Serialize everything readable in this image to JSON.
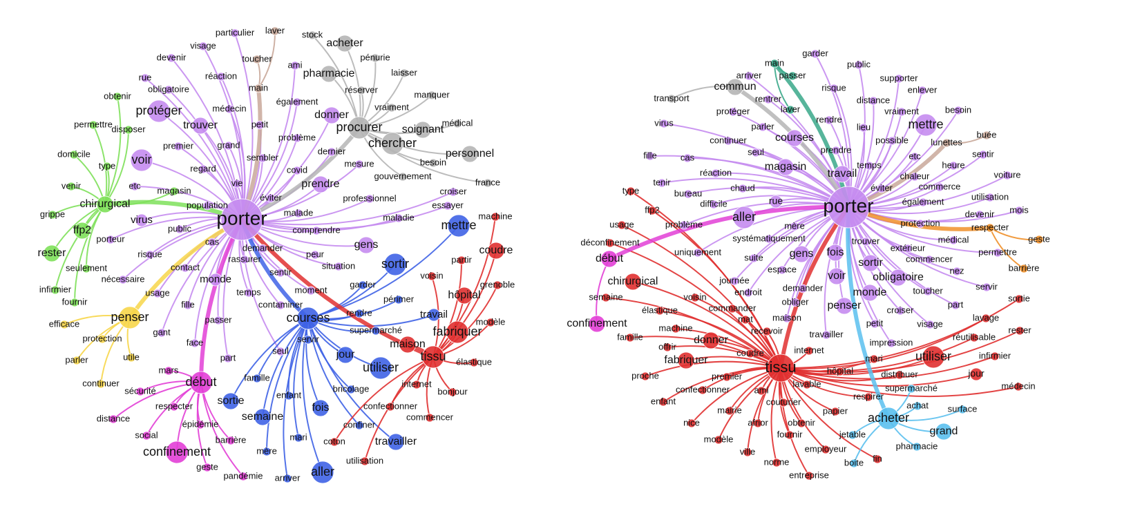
{
  "graphs": [
    {
      "clusters": [
        {
          "color": "#c58cf0",
          "nodes": [
            "porter",
            "particulier",
            "visage",
            "devenir",
            "ami",
            "réaction",
            "rue",
            "obligatoire",
            "médecin",
            "également",
            "protéger",
            "trouver",
            "petit",
            "problème",
            "premier",
            "grand",
            "sembler",
            "dernier",
            "voir",
            "regard",
            "covid",
            "mesure",
            "etc",
            "vie",
            "prendre",
            "éviter",
            "population",
            "malade",
            "virus",
            "public",
            "cas",
            "comprendre",
            "demander",
            "rassurer",
            "porteur",
            "risque",
            "contact",
            "peur",
            "situation",
            "sentir",
            "monde",
            "nécessaire",
            "moment",
            "temps",
            "usage",
            "fille",
            "contaminer",
            "passer",
            "gant",
            "face",
            "part",
            "seul",
            "gens",
            "donner",
            "croiser",
            "essayer",
            "maladie",
            "professionnel"
          ]
        },
        {
          "color": "#b5b5b5",
          "nodes": [
            "procurer",
            "chercher",
            "soignant",
            "stock",
            "acheter",
            "pharmacie",
            "pénurie",
            "laisser",
            "réserver",
            "manquer",
            "vraiment",
            "médical",
            "personnel",
            "besoin",
            "gouvernement",
            "france"
          ]
        },
        {
          "color": "#c9a89a",
          "nodes": [
            "main",
            "laver",
            "toucher"
          ]
        },
        {
          "color": "#7ee05a",
          "nodes": [
            "chirurgical",
            "obtenir",
            "permettre",
            "disposer",
            "domicile",
            "type",
            "venir",
            "grippe",
            "ffp2",
            "rester",
            "seulement",
            "infirmier",
            "fournir",
            "magasin"
          ]
        },
        {
          "color": "#f7d64a",
          "nodes": [
            "penser",
            "efficace",
            "protection",
            "parler",
            "utile",
            "continuer"
          ]
        },
        {
          "color": "#e23fd6",
          "nodes": [
            "début",
            "mars",
            "sécurité",
            "respecter",
            "distance",
            "épidémie",
            "social",
            "barrière",
            "confinement",
            "geste",
            "pandémie"
          ]
        },
        {
          "color": "#3f63e6",
          "nodes": [
            "courses",
            "mettre",
            "sortir",
            "garder",
            "périmer",
            "rendre",
            "supermarché",
            "servir",
            "jour",
            "utiliser",
            "famille",
            "enfant",
            "bricolage",
            "sortie",
            "semaine",
            "fois",
            "confiner",
            "mari",
            "mère",
            "travailler",
            "aller",
            "arriver",
            "travail"
          ]
        },
        {
          "color": "#e03030",
          "nodes": [
            "tissu",
            "fabriquer",
            "machine",
            "coudre",
            "partir",
            "voisin",
            "hôpital",
            "grenoble",
            "modèle",
            "maison",
            "élastique",
            "internet",
            "confectionner",
            "bonjour",
            "commencer",
            "coton",
            "utilisation"
          ]
        }
      ]
    },
    {
      "clusters": [
        {
          "color": "#c58cf0",
          "nodes": [
            "porter",
            "garder",
            "public",
            "arriver",
            "supporter",
            "risque",
            "enlever",
            "rentrer",
            "distance",
            "besoin",
            "protéger",
            "vraiment",
            "rendre",
            "lieu",
            "mettre",
            "virus",
            "parler",
            "courses",
            "possible",
            "continuer",
            "prendre",
            "fille",
            "seul",
            "cas",
            "etc",
            "sentir",
            "magasin",
            "temps",
            "heure",
            "réaction",
            "travail",
            "voiture",
            "chaleur",
            "tenir",
            "chaud",
            "éviter",
            "commerce",
            "bureau",
            "utilisation",
            "difficile",
            "rue",
            "également",
            "aller",
            "mois",
            "devenir",
            "problème",
            "protection",
            "permettre",
            "mère",
            "systématiquement",
            "médical",
            "trouver",
            "extérieur",
            "uniquement",
            "gens",
            "fois",
            "suite",
            "commencer",
            "sortir",
            "espace",
            "nez",
            "voir",
            "obligatoire",
            "journée",
            "demander",
            "toucher",
            "servir",
            "endroit",
            "monde",
            "obliger",
            "part",
            "penser",
            "croiser",
            "maison",
            "visage",
            "petit",
            "travailler",
            "impression"
          ]
        },
        {
          "color": "#3aa88a",
          "nodes": [
            "main",
            "passer",
            "laver"
          ]
        },
        {
          "color": "#b5b5b5",
          "nodes": [
            "commun",
            "transport"
          ]
        },
        {
          "color": "#c9a89a",
          "nodes": [
            "lunettes",
            "buée"
          ]
        },
        {
          "color": "#f0902a",
          "nodes": [
            "respecter",
            "geste",
            "barrière"
          ]
        },
        {
          "color": "#e03030",
          "nodes": [
            "tissu",
            "type",
            "ffp2",
            "usage",
            "déconfinement",
            "chirurgical",
            "semaine",
            "élastique",
            "voisin",
            "commander",
            "mat",
            "recevoir",
            "machine",
            "famille",
            "donner",
            "offrir",
            "coudre",
            "internet",
            "fabriquer",
            "mari",
            "utiliser",
            "sortie",
            "lavage",
            "rester",
            "réutilisable",
            "infirmier",
            "premier",
            "hôpital",
            "distribuer",
            "jour",
            "proche",
            "lavable",
            "médecin",
            "confectionner",
            "ami",
            "respirer",
            "enfant",
            "couturier",
            "papier",
            "mairie",
            "nice",
            "afrior",
            "obtenir",
            "fournir",
            "modèle",
            "employeur",
            "ville",
            "norme",
            "fin",
            "entreprise"
          ]
        },
        {
          "color": "#e23fd6",
          "nodes": [
            "début",
            "confinement"
          ]
        },
        {
          "color": "#5bc0ee",
          "nodes": [
            "acheter",
            "supermarché",
            "achat",
            "surface",
            "jetable",
            "grand",
            "pharmacie",
            "boite"
          ]
        }
      ]
    }
  ]
}
